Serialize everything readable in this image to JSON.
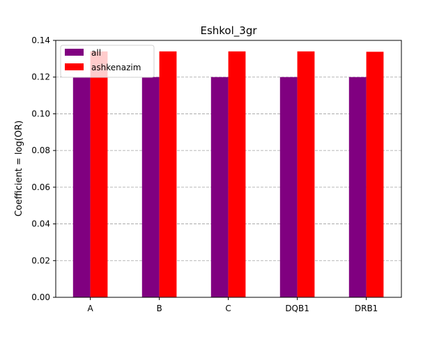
{
  "chart_data": {
    "type": "bar",
    "title": "Eshkol_3gr",
    "xlabel": "",
    "ylabel": "Coefficient = log(OR)",
    "categories": [
      "A",
      "B",
      "C",
      "DQB1",
      "DRB1"
    ],
    "series": [
      {
        "name": "all",
        "color": "#800080",
        "values": [
          0.12,
          0.12,
          0.12,
          0.12,
          0.12
        ]
      },
      {
        "name": "ashkenazim",
        "color": "#ff0000",
        "values": [
          0.134,
          0.134,
          0.134,
          0.134,
          0.1338
        ]
      }
    ],
    "ylim": [
      0,
      0.14
    ],
    "yticks": [
      "0.00",
      "0.02",
      "0.04",
      "0.06",
      "0.08",
      "0.10",
      "0.12",
      "0.14"
    ],
    "grid": "horizontal dashed",
    "legend": "top-left"
  }
}
